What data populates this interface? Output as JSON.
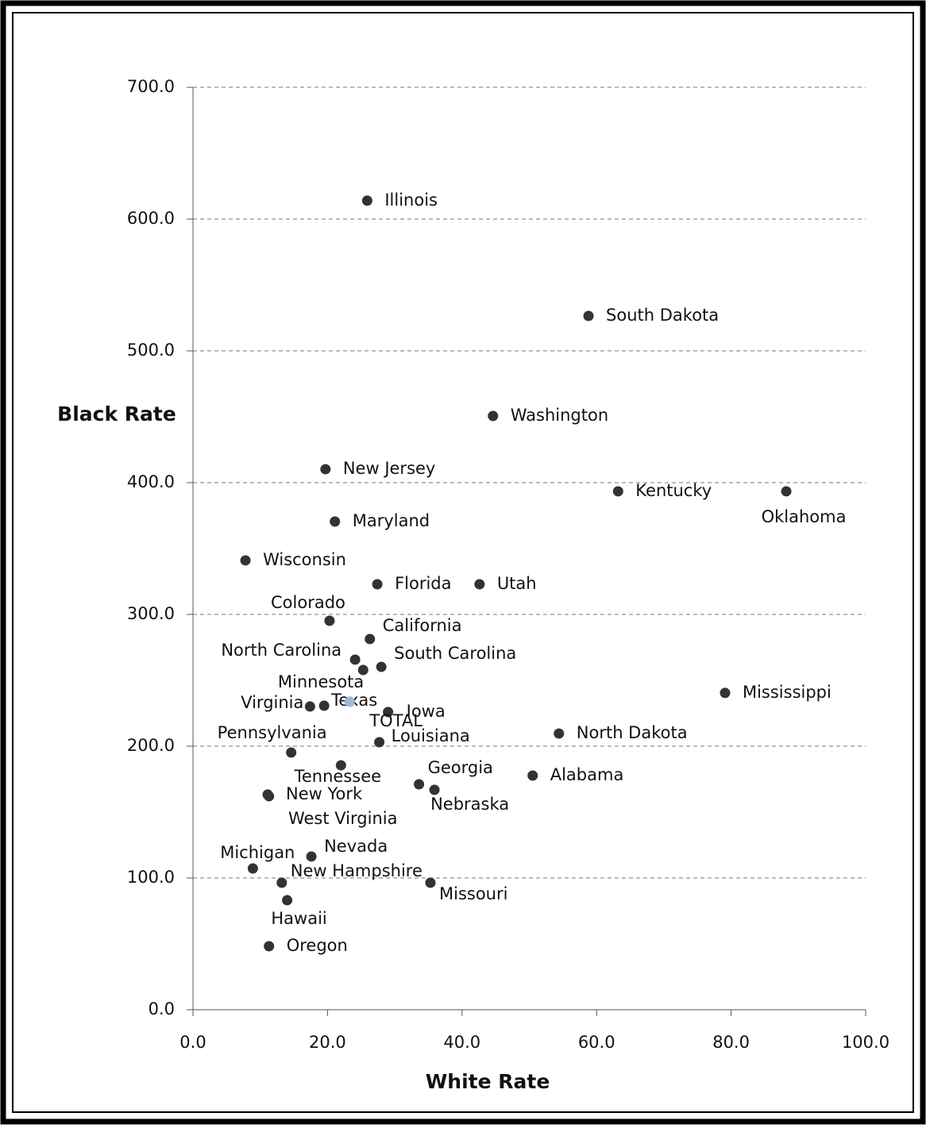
{
  "chart_data": {
    "type": "scatter",
    "x_label": "White Rate",
    "y_label": "Black Rate",
    "xlim": [
      0,
      100
    ],
    "xticks": [
      {
        "value": 0,
        "label": "0.0"
      },
      {
        "value": 20,
        "label": "20.0"
      },
      {
        "value": 40,
        "label": "40.0"
      },
      {
        "value": 60,
        "label": "60.0"
      },
      {
        "value": 80,
        "label": "80.0"
      },
      {
        "value": 100,
        "label": "100.0"
      }
    ],
    "ylim": [
      0,
      700
    ],
    "yticks": [
      {
        "value": 0,
        "label": "0.0"
      },
      {
        "value": 100,
        "label": "100.0"
      },
      {
        "value": 200,
        "label": "200.0"
      },
      {
        "value": 300,
        "label": "300.0"
      },
      {
        "value": 400,
        "label": "400.0"
      },
      {
        "value": 500,
        "label": "500.0"
      },
      {
        "value": 600,
        "label": "600.0"
      },
      {
        "value": 700,
        "label": "700.0"
      }
    ],
    "grid": true,
    "series": [
      {
        "color": "#333333",
        "point_labels": [
          "Illinois",
          "South Dakota",
          "Washington",
          "New Jersey",
          "Kentucky",
          "Oklahoma",
          "Maryland",
          "Wisconsin",
          "Florida",
          "Utah",
          "Colorado",
          "California",
          "North Carolina",
          "South Carolina",
          "Minnesota",
          "Texas",
          "Virginia",
          "Iowa",
          "Mississippi",
          "North Dakota",
          "Louisiana",
          "Pennsylvania",
          "Tennessee",
          "Alabama",
          "Georgia",
          "Nebraska",
          "New York",
          "West Virginia",
          "Nevada",
          "Michigan",
          "New Hampshire",
          "Missouri",
          "Hawaii",
          "Oregon"
        ],
        "x": [
          25.9,
          58.8,
          44.6,
          19.7,
          63.2,
          88.2,
          21.1,
          7.8,
          27.4,
          42.6,
          20.3,
          26.3,
          24.1,
          28.0,
          25.3,
          19.5,
          17.4,
          29.0,
          79.1,
          54.4,
          27.7,
          14.6,
          22.0,
          50.5,
          33.6,
          35.9,
          11.1,
          11.3,
          17.6,
          8.9,
          13.2,
          35.3,
          14.0,
          11.3
        ],
        "values": [
          614,
          526.5,
          450.6,
          410.2,
          393.4,
          393.4,
          370.5,
          341,
          322.9,
          322.9,
          295.2,
          281.3,
          265.7,
          260.2,
          257.8,
          230.7,
          230.1,
          225.9,
          240.4,
          209.6,
          203,
          195.2,
          185.5,
          177.7,
          171.1,
          166.9,
          163.3,
          162,
          116.3,
          107.2,
          96.4,
          96.4,
          83.1,
          48.2
        ]
      },
      {
        "name": "TOTAL",
        "color": "#9ab8d8",
        "x": [
          23.3
        ],
        "values": [
          233.7
        ]
      }
    ]
  }
}
